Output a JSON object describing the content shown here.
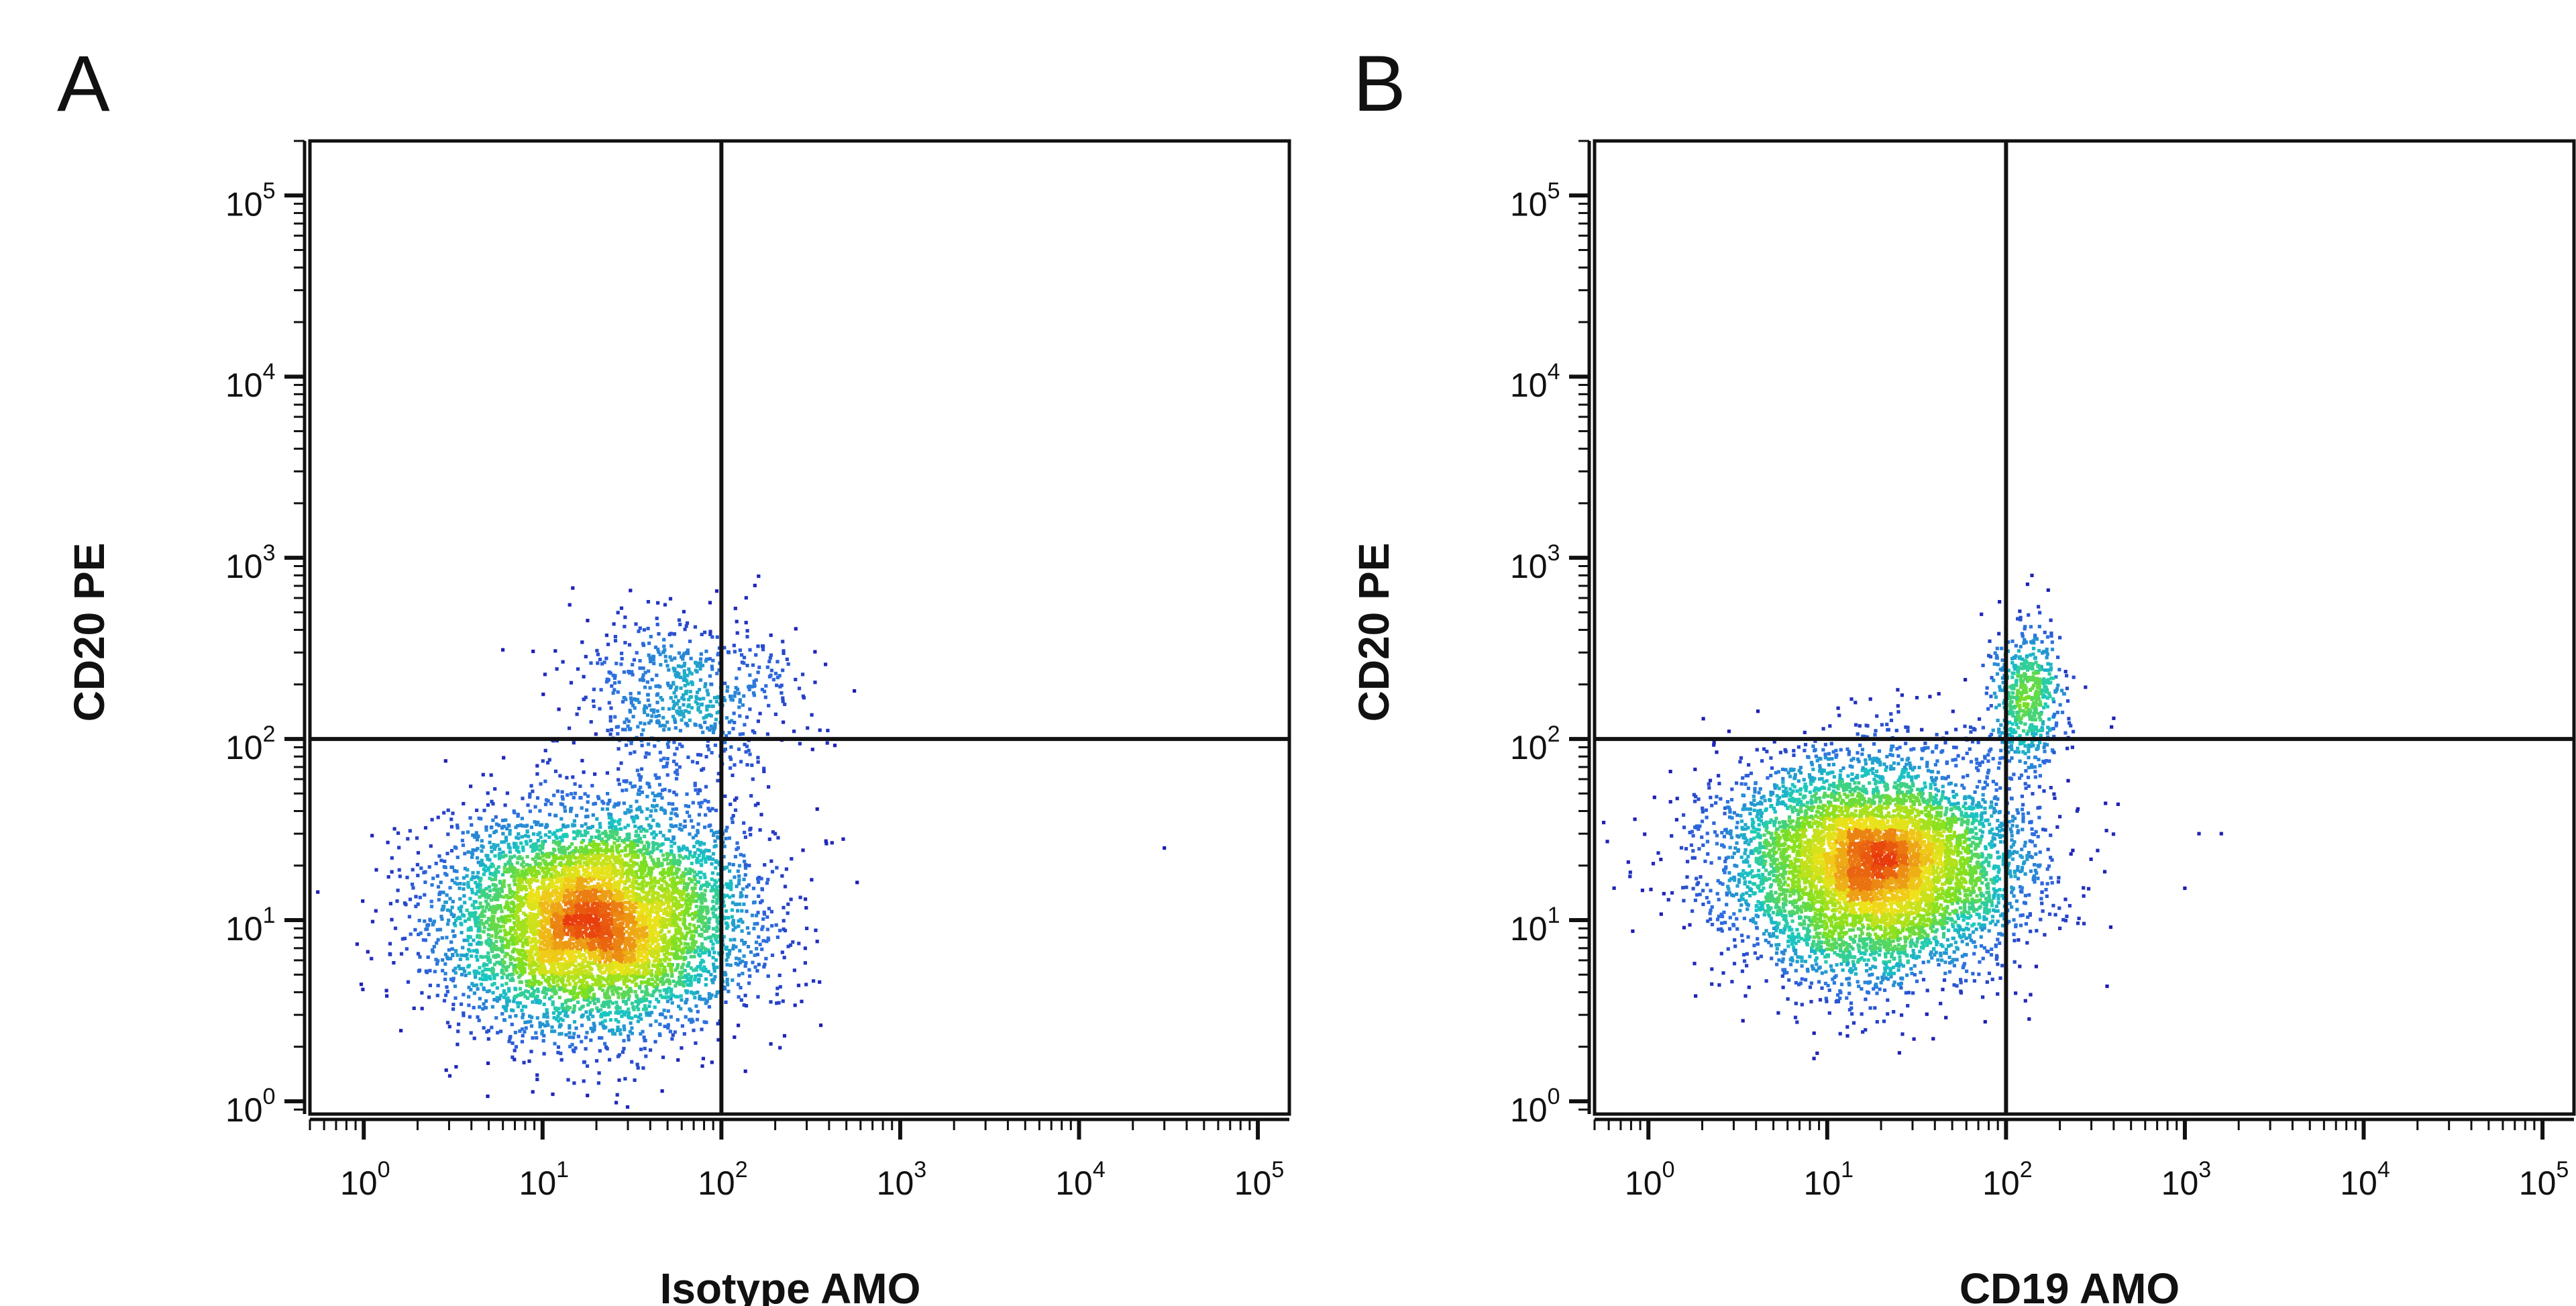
{
  "chart_data": [
    {
      "type": "scatter",
      "panel_label": "A",
      "xlabel": "Isotype AMO",
      "ylabel": "CD20 PE",
      "x_scale": "log",
      "y_scale": "log",
      "xlim": [
        0.5,
        150000
      ],
      "ylim": [
        0.85,
        200000
      ],
      "x_ticks": [
        {
          "base": "10",
          "exp": "0",
          "value": 1
        },
        {
          "base": "10",
          "exp": "1",
          "value": 10
        },
        {
          "base": "10",
          "exp": "2",
          "value": 100
        },
        {
          "base": "10",
          "exp": "3",
          "value": 1000
        },
        {
          "base": "10",
          "exp": "4",
          "value": 10000
        },
        {
          "base": "10",
          "exp": "5",
          "value": 100000
        }
      ],
      "y_ticks": [
        {
          "base": "10",
          "exp": "0",
          "value": 1
        },
        {
          "base": "10",
          "exp": "1",
          "value": 10
        },
        {
          "base": "10",
          "exp": "2",
          "value": 100
        },
        {
          "base": "10",
          "exp": "3",
          "value": 1000
        },
        {
          "base": "10",
          "exp": "4",
          "value": 10000
        },
        {
          "base": "10",
          "exp": "5",
          "value": 100000
        }
      ],
      "quadrant_gate": {
        "x": 100,
        "y": 100
      },
      "grid": false,
      "colormap": [
        "#1a0aa8",
        "#2f6be0",
        "#18c8c0",
        "#7ee01e",
        "#f0e21a",
        "#e83a0c"
      ],
      "populations": [
        {
          "n": 6500,
          "cx": 20,
          "cy": 10,
          "sdx": 0.42,
          "sdy": 0.3
        },
        {
          "n": 650,
          "cx": 60,
          "cy": 170,
          "sdx": 0.32,
          "sdy": 0.22
        }
      ],
      "sparse_points": [
        [
          480,
          28
        ],
        [
          30000,
          25
        ],
        [
          150,
          60
        ],
        [
          300,
          9
        ],
        [
          200,
          30
        ]
      ]
    },
    {
      "type": "scatter",
      "panel_label": "B",
      "xlabel": "CD19 AMO",
      "ylabel": "CD20 PE",
      "x_scale": "log",
      "y_scale": "log",
      "xlim": [
        0.5,
        150000
      ],
      "ylim": [
        0.85,
        200000
      ],
      "x_ticks": [
        {
          "base": "10",
          "exp": "0",
          "value": 1
        },
        {
          "base": "10",
          "exp": "1",
          "value": 10
        },
        {
          "base": "10",
          "exp": "2",
          "value": 100
        },
        {
          "base": "10",
          "exp": "3",
          "value": 1000
        },
        {
          "base": "10",
          "exp": "4",
          "value": 10000
        },
        {
          "base": "10",
          "exp": "5",
          "value": 100000
        }
      ],
      "y_ticks": [
        {
          "base": "10",
          "exp": "0",
          "value": 1
        },
        {
          "base": "10",
          "exp": "1",
          "value": 10
        },
        {
          "base": "10",
          "exp": "2",
          "value": 100
        },
        {
          "base": "10",
          "exp": "3",
          "value": 1000
        },
        {
          "base": "10",
          "exp": "4",
          "value": 10000
        },
        {
          "base": "10",
          "exp": "5",
          "value": 100000
        }
      ],
      "quadrant_gate": {
        "x": 100,
        "y": 100
      },
      "grid": false,
      "colormap": [
        "#1a0aa8",
        "#2f6be0",
        "#18c8c0",
        "#7ee01e",
        "#f0e21a",
        "#e83a0c"
      ],
      "populations": [
        {
          "n": 6500,
          "cx": 18,
          "cy": 20,
          "sdx": 0.4,
          "sdy": 0.3
        },
        {
          "n": 550,
          "cx": 130,
          "cy": 170,
          "sdx": 0.1,
          "sdy": 0.2
        }
      ],
      "sparse_points": [
        [
          1200,
          30
        ],
        [
          1600,
          30
        ],
        [
          400,
          130
        ],
        [
          250,
          40
        ],
        [
          1000,
          15
        ]
      ]
    }
  ]
}
